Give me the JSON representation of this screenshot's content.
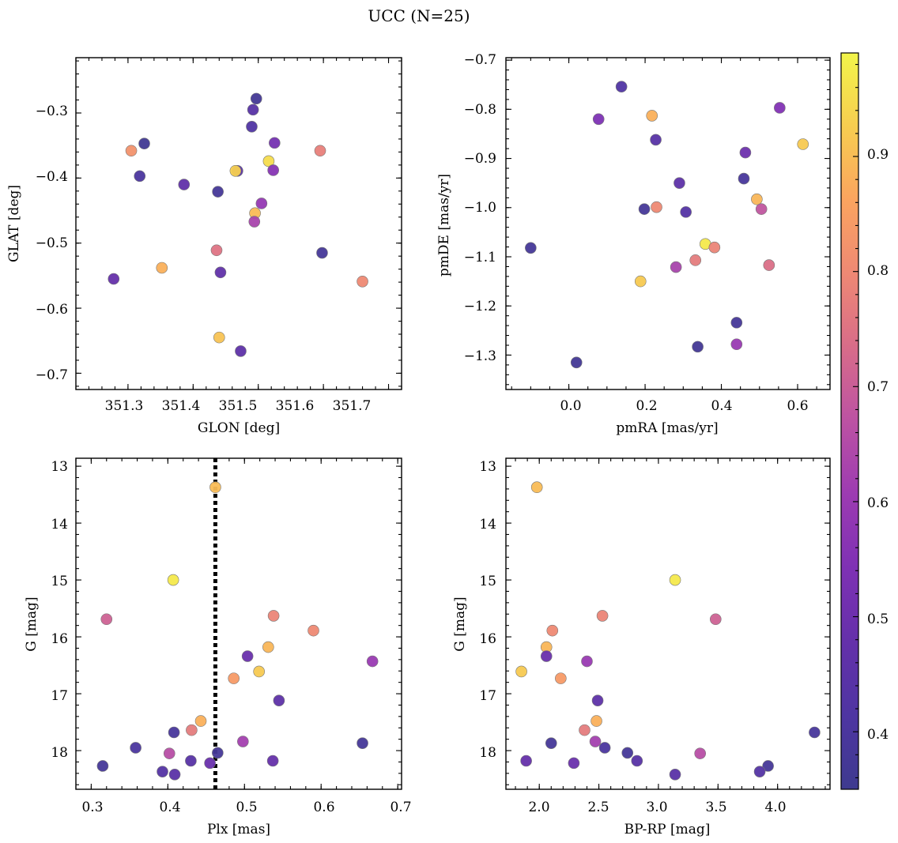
{
  "title": "UCC (N=25)",
  "colorbar": {
    "colormap": "plasma",
    "range": [
      0.35,
      0.99
    ],
    "ticks": [
      "0.4",
      "0.5",
      "0.6",
      "0.7",
      "0.8",
      "0.9"
    ]
  },
  "chart_data": [
    {
      "type": "scatter",
      "xlabel": "GLON [deg]",
      "ylabel": "GLAT [deg]",
      "xlim": [
        351.22,
        351.72
      ],
      "ylim": [
        -0.725,
        -0.215
      ],
      "xticks": [
        "351.3",
        "351.4",
        "351.5",
        "351.6",
        "351.7"
      ],
      "yticks": [
        "−0.3",
        "−0.4",
        "−0.5",
        "−0.6",
        "−0.7"
      ],
      "points": [
        {
          "x": 351.497,
          "y": -0.278,
          "c": 0.37
        },
        {
          "x": 351.492,
          "y": -0.295,
          "c": 0.44
        },
        {
          "x": 351.49,
          "y": -0.321,
          "c": 0.42
        },
        {
          "x": 351.525,
          "y": -0.346,
          "c": 0.52
        },
        {
          "x": 351.325,
          "y": -0.347,
          "c": 0.36
        },
        {
          "x": 351.305,
          "y": -0.358,
          "c": 0.82
        },
        {
          "x": 351.595,
          "y": -0.358,
          "c": 0.78
        },
        {
          "x": 351.516,
          "y": -0.374,
          "c": 0.95
        },
        {
          "x": 351.468,
          "y": -0.389,
          "c": 0.45
        },
        {
          "x": 351.465,
          "y": -0.389,
          "c": 0.93
        },
        {
          "x": 351.523,
          "y": -0.388,
          "c": 0.56
        },
        {
          "x": 351.318,
          "y": -0.397,
          "c": 0.4
        },
        {
          "x": 351.386,
          "y": -0.41,
          "c": 0.47
        },
        {
          "x": 351.438,
          "y": -0.421,
          "c": 0.38
        },
        {
          "x": 351.505,
          "y": -0.439,
          "c": 0.59
        },
        {
          "x": 351.495,
          "y": -0.454,
          "c": 0.9
        },
        {
          "x": 351.494,
          "y": -0.467,
          "c": 0.63
        },
        {
          "x": 351.436,
          "y": -0.511,
          "c": 0.75
        },
        {
          "x": 351.598,
          "y": -0.515,
          "c": 0.38
        },
        {
          "x": 351.442,
          "y": -0.545,
          "c": 0.47
        },
        {
          "x": 351.278,
          "y": -0.555,
          "c": 0.48
        },
        {
          "x": 351.352,
          "y": -0.538,
          "c": 0.88
        },
        {
          "x": 351.66,
          "y": -0.559,
          "c": 0.8
        },
        {
          "x": 351.44,
          "y": -0.645,
          "c": 0.91
        },
        {
          "x": 351.473,
          "y": -0.666,
          "c": 0.46
        }
      ]
    },
    {
      "type": "scatter",
      "xlabel": "pmRA [mas/yr]",
      "ylabel": "pmDE [mas/yr]",
      "xlim": [
        -0.165,
        0.685
      ],
      "ylim": [
        -1.37,
        -0.695
      ],
      "xticks": [
        "0.0",
        "0.2",
        "0.4",
        "0.6"
      ],
      "yticks": [
        "−0.7",
        "−0.8",
        "−0.9",
        "−1.0",
        "−1.1",
        "−1.2",
        "−1.3"
      ],
      "points": [
        {
          "x": 0.138,
          "y": -0.754,
          "c": 0.42
        },
        {
          "x": 0.553,
          "y": -0.797,
          "c": 0.55
        },
        {
          "x": 0.218,
          "y": -0.813,
          "c": 0.88
        },
        {
          "x": 0.078,
          "y": -0.82,
          "c": 0.54
        },
        {
          "x": 0.228,
          "y": -0.862,
          "c": 0.44
        },
        {
          "x": 0.614,
          "y": -0.871,
          "c": 0.92
        },
        {
          "x": 0.463,
          "y": -0.888,
          "c": 0.5
        },
        {
          "x": 0.459,
          "y": -0.941,
          "c": 0.39
        },
        {
          "x": 0.29,
          "y": -0.95,
          "c": 0.46
        },
        {
          "x": 0.493,
          "y": -0.983,
          "c": 0.89
        },
        {
          "x": 0.198,
          "y": -1.003,
          "c": 0.38
        },
        {
          "x": 0.23,
          "y": -0.999,
          "c": 0.8
        },
        {
          "x": 0.505,
          "y": -1.003,
          "c": 0.68
        },
        {
          "x": 0.307,
          "y": -1.009,
          "c": 0.43
        },
        {
          "x": 0.358,
          "y": -1.074,
          "c": 0.97
        },
        {
          "x": 0.382,
          "y": -1.081,
          "c": 0.79
        },
        {
          "x": -0.1,
          "y": -1.082,
          "c": 0.38
        },
        {
          "x": 0.332,
          "y": -1.107,
          "c": 0.77
        },
        {
          "x": 0.525,
          "y": -1.117,
          "c": 0.74
        },
        {
          "x": 0.281,
          "y": -1.121,
          "c": 0.63
        },
        {
          "x": 0.188,
          "y": -1.15,
          "c": 0.92
        },
        {
          "x": 0.44,
          "y": -1.234,
          "c": 0.38
        },
        {
          "x": 0.44,
          "y": -1.278,
          "c": 0.6
        },
        {
          "x": 0.338,
          "y": -1.283,
          "c": 0.37
        },
        {
          "x": 0.02,
          "y": -1.315,
          "c": 0.37
        }
      ]
    },
    {
      "type": "scatter",
      "xlabel": "Plx [mas]",
      "ylabel": "G [mag]",
      "xlim": [
        0.28,
        0.705
      ],
      "ylim": [
        18.68,
        12.86
      ],
      "xticks": [
        "0.3",
        "0.4",
        "0.5",
        "0.6",
        "0.7"
      ],
      "yticks": [
        "13",
        "14",
        "15",
        "16",
        "17",
        "18"
      ],
      "vline": 0.462,
      "points": [
        {
          "x": 0.462,
          "y": 13.37,
          "c": 0.9
        },
        {
          "x": 0.407,
          "y": 15.0,
          "c": 0.97
        },
        {
          "x": 0.538,
          "y": 15.63,
          "c": 0.79
        },
        {
          "x": 0.32,
          "y": 15.69,
          "c": 0.71
        },
        {
          "x": 0.59,
          "y": 15.89,
          "c": 0.8
        },
        {
          "x": 0.531,
          "y": 16.18,
          "c": 0.89
        },
        {
          "x": 0.504,
          "y": 16.34,
          "c": 0.49
        },
        {
          "x": 0.667,
          "y": 16.43,
          "c": 0.6
        },
        {
          "x": 0.519,
          "y": 16.61,
          "c": 0.92
        },
        {
          "x": 0.486,
          "y": 16.73,
          "c": 0.84
        },
        {
          "x": 0.545,
          "y": 17.12,
          "c": 0.46
        },
        {
          "x": 0.443,
          "y": 17.48,
          "c": 0.88
        },
        {
          "x": 0.431,
          "y": 17.64,
          "c": 0.77
        },
        {
          "x": 0.408,
          "y": 17.68,
          "c": 0.39
        },
        {
          "x": 0.498,
          "y": 17.84,
          "c": 0.62
        },
        {
          "x": 0.654,
          "y": 17.87,
          "c": 0.38
        },
        {
          "x": 0.358,
          "y": 17.95,
          "c": 0.4
        },
        {
          "x": 0.402,
          "y": 18.05,
          "c": 0.66
        },
        {
          "x": 0.465,
          "y": 18.04,
          "c": 0.38
        },
        {
          "x": 0.537,
          "y": 18.18,
          "c": 0.48
        },
        {
          "x": 0.43,
          "y": 18.18,
          "c": 0.44
        },
        {
          "x": 0.455,
          "y": 18.22,
          "c": 0.49
        },
        {
          "x": 0.315,
          "y": 18.27,
          "c": 0.38
        },
        {
          "x": 0.393,
          "y": 18.37,
          "c": 0.43
        },
        {
          "x": 0.409,
          "y": 18.42,
          "c": 0.45
        }
      ]
    },
    {
      "type": "scatter",
      "xlabel": "BP-RP [mag]",
      "ylabel": "G [mag]",
      "xlim": [
        1.72,
        4.44
      ],
      "ylim": [
        18.68,
        12.86
      ],
      "xticks": [
        "2.0",
        "2.5",
        "3.0",
        "3.5",
        "4.0"
      ],
      "yticks": [
        "13",
        "14",
        "15",
        "16",
        "17",
        "18"
      ],
      "points": [
        {
          "x": 1.98,
          "y": 13.37,
          "c": 0.9
        },
        {
          "x": 3.14,
          "y": 15.0,
          "c": 0.97
        },
        {
          "x": 2.53,
          "y": 15.63,
          "c": 0.79
        },
        {
          "x": 3.48,
          "y": 15.69,
          "c": 0.71
        },
        {
          "x": 2.11,
          "y": 15.89,
          "c": 0.8
        },
        {
          "x": 2.06,
          "y": 16.18,
          "c": 0.89
        },
        {
          "x": 2.06,
          "y": 16.34,
          "c": 0.49
        },
        {
          "x": 2.4,
          "y": 16.43,
          "c": 0.6
        },
        {
          "x": 1.85,
          "y": 16.61,
          "c": 0.92
        },
        {
          "x": 2.18,
          "y": 16.73,
          "c": 0.84
        },
        {
          "x": 2.49,
          "y": 17.12,
          "c": 0.46
        },
        {
          "x": 2.48,
          "y": 17.48,
          "c": 0.88
        },
        {
          "x": 2.38,
          "y": 17.64,
          "c": 0.77
        },
        {
          "x": 4.31,
          "y": 17.68,
          "c": 0.39
        },
        {
          "x": 2.47,
          "y": 17.84,
          "c": 0.62
        },
        {
          "x": 2.1,
          "y": 17.87,
          "c": 0.38
        },
        {
          "x": 2.55,
          "y": 17.95,
          "c": 0.4
        },
        {
          "x": 3.35,
          "y": 18.05,
          "c": 0.66
        },
        {
          "x": 2.74,
          "y": 18.04,
          "c": 0.38
        },
        {
          "x": 1.89,
          "y": 18.18,
          "c": 0.48
        },
        {
          "x": 2.82,
          "y": 18.18,
          "c": 0.44
        },
        {
          "x": 2.29,
          "y": 18.22,
          "c": 0.49
        },
        {
          "x": 3.92,
          "y": 18.27,
          "c": 0.38
        },
        {
          "x": 3.85,
          "y": 18.37,
          "c": 0.43
        },
        {
          "x": 3.14,
          "y": 18.42,
          "c": 0.45
        }
      ]
    }
  ]
}
